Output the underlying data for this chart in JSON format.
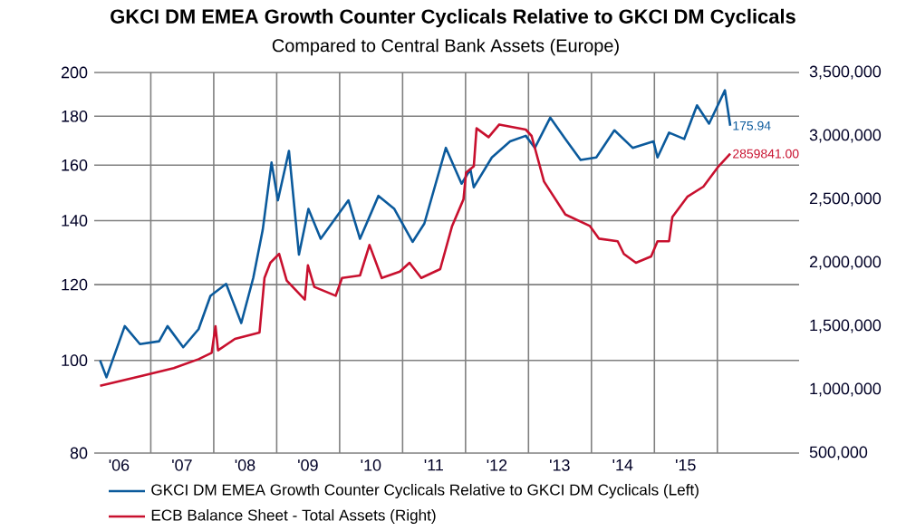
{
  "chart_data": {
    "type": "line",
    "title": "GKCI DM EMEA Growth Counter Cyclicals Relative to GKCI DM Cyclicals",
    "subtitle": "Compared to Central Bank Assets (Europe)",
    "xlim": [
      "2006-02-07",
      "2017-04-20"
    ],
    "xticks": [
      {
        "value": "2006-07-01",
        "label": "'06"
      },
      {
        "value": "2007-07-01",
        "label": "'07"
      },
      {
        "value": "2008-07-01",
        "label": "'08"
      },
      {
        "value": "2009-07-01",
        "label": "'09"
      },
      {
        "value": "2010-07-01",
        "label": "'10"
      },
      {
        "value": "2011-07-01",
        "label": "'11"
      },
      {
        "value": "2012-07-01",
        "label": "'12"
      },
      {
        "value": "2013-07-01",
        "label": "'13"
      },
      {
        "value": "2014-07-01",
        "label": "'14"
      },
      {
        "value": "2015-07-01",
        "label": "'15"
      },
      {
        "value": "2007-01-01",
        "label": null
      },
      {
        "value": "2008-01-01",
        "label": null
      },
      {
        "value": "2009-01-01",
        "label": null
      },
      {
        "value": "2010-01-01",
        "label": null
      },
      {
        "value": "2011-01-01",
        "label": null
      },
      {
        "value": "2012-01-01",
        "label": null
      },
      {
        "value": "2013-01-01",
        "label": null
      },
      {
        "value": "2014-01-01",
        "label": null
      },
      {
        "value": "2015-01-01",
        "label": null
      },
      {
        "value": "2016-01-01",
        "label": null
      }
    ],
    "ylim": [
      80,
      200
    ],
    "yticks": [
      80,
      100,
      120,
      140,
      160,
      180,
      200
    ],
    "log": "y",
    "y2lim": [
      500000,
      3500000
    ],
    "y2ticks": [
      {
        "value": 500000,
        "label": "500,000"
      },
      {
        "value": 1000000,
        "label": "1,000,000"
      },
      {
        "value": 1500000,
        "label": "1,500,000"
      },
      {
        "value": 2000000,
        "label": "2,000,000"
      },
      {
        "value": 2500000,
        "label": "2,500,000"
      },
      {
        "value": 3000000,
        "label": "3,000,000"
      },
      {
        "value": 3500000,
        "label": "3,500,000"
      }
    ],
    "grid": true,
    "legend": "bottom",
    "series": [
      {
        "name": "GKCI DM EMEA Growth Counter Cyclicals Relative to GKCI DM Cyclicals  (Left)",
        "color": "#0b5a9c",
        "axis": "y",
        "x": [
          "2006-03-13",
          "2006-04-19",
          "2006-08-03",
          "2006-10-30",
          "2007-02-18",
          "2007-04-08",
          "2007-07-08",
          "2007-10-05",
          "2007-12-13",
          "2008-03-13",
          "2008-06-09",
          "2008-08-18",
          "2008-10-12",
          "2008-12-02",
          "2009-01-08",
          "2009-03-13",
          "2009-05-10",
          "2009-07-04",
          "2009-09-13",
          "2010-02-21",
          "2010-04-29",
          "2010-08-14",
          "2010-11-14",
          "2011-02-28",
          "2011-05-07",
          "2011-09-09",
          "2011-12-09",
          "2012-01-29",
          "2012-02-18",
          "2012-06-02",
          "2012-09-16",
          "2012-12-16",
          "2013-02-07",
          "2013-05-07",
          "2013-08-03",
          "2013-10-30",
          "2014-01-29",
          "2014-05-14",
          "2014-08-28",
          "2014-12-27",
          "2015-01-19",
          "2015-03-27",
          "2015-06-23",
          "2015-09-05",
          "2015-11-14",
          "2016-02-14",
          "2016-03-16"
        ],
        "values": [
          100,
          96,
          108.6,
          104,
          104.7,
          108.6,
          103.2,
          107.8,
          116.8,
          120.2,
          109.4,
          122,
          137,
          161,
          147,
          165.6,
          129,
          144,
          134,
          147,
          134,
          148.6,
          144,
          133,
          139,
          166.8,
          153,
          158.4,
          151.7,
          163,
          169.4,
          171.7,
          166.8,
          179.4,
          170.4,
          162,
          163,
          174,
          166.8,
          169.4,
          163,
          173,
          170.4,
          184.8,
          176.8,
          191.6,
          175.94
        ],
        "value_labels": [
          null,
          null,
          null,
          null,
          null,
          null,
          null,
          null,
          null,
          null,
          null,
          null,
          null,
          null,
          null,
          null,
          null,
          null,
          null,
          null,
          null,
          null,
          null,
          null,
          null,
          null,
          null,
          null,
          null,
          null,
          null,
          null,
          null,
          null,
          null,
          null,
          null,
          null,
          null,
          null,
          null,
          null,
          null,
          null,
          null,
          null,
          "175.94"
        ]
      },
      {
        "name": "ECB Balance Sheet - Total Assets  (Right)",
        "color": "#c8102e",
        "axis": "y2",
        "x": [
          "2006-03-13",
          "2006-11-17",
          "2007-05-14",
          "2007-10-05",
          "2007-12-20",
          "2008-01-11",
          "2008-01-26",
          "2008-05-03",
          "2008-09-23",
          "2008-10-22",
          "2008-11-25",
          "2009-01-15",
          "2009-02-28",
          "2009-06-13",
          "2009-07-01",
          "2009-08-07",
          "2009-12-09",
          "2010-01-15",
          "2010-04-29",
          "2010-06-23",
          "2010-09-02",
          "2010-12-16",
          "2011-02-10",
          "2011-04-19",
          "2011-08-07",
          "2011-10-15",
          "2011-12-20",
          "2012-01-04",
          "2012-02-18",
          "2012-03-05",
          "2012-05-14",
          "2012-07-15",
          "2012-12-16",
          "2013-01-19",
          "2013-04-01",
          "2013-08-03",
          "2013-12-23",
          "2014-02-14",
          "2014-06-02",
          "2014-07-08",
          "2014-09-16",
          "2014-12-13",
          "2015-01-19",
          "2015-03-27",
          "2015-04-15",
          "2015-07-11",
          "2015-10-12",
          "2016-01-08",
          "2016-03-16"
        ],
        "values": [
          1030000,
          1110000,
          1170000,
          1240000,
          1290000,
          1500000,
          1310000,
          1400000,
          1450000,
          1880000,
          2000000,
          2070000,
          1860000,
          1710000,
          1980000,
          1810000,
          1740000,
          1880000,
          1900000,
          2140000,
          1880000,
          1930000,
          2000000,
          1880000,
          1950000,
          2290000,
          2500000,
          2710000,
          2760000,
          3060000,
          2990000,
          3090000,
          3050000,
          3000000,
          2640000,
          2380000,
          2290000,
          2190000,
          2170000,
          2070000,
          2000000,
          2050000,
          2170000,
          2170000,
          2360000,
          2520000,
          2600000,
          2760000,
          2859841
        ],
        "value_labels": [
          null,
          null,
          null,
          null,
          null,
          null,
          null,
          null,
          null,
          null,
          null,
          null,
          null,
          null,
          null,
          null,
          null,
          null,
          null,
          null,
          null,
          null,
          null,
          null,
          null,
          null,
          null,
          null,
          null,
          null,
          null,
          null,
          null,
          null,
          null,
          null,
          null,
          null,
          null,
          null,
          null,
          null,
          null,
          null,
          null,
          null,
          null,
          null,
          "2859841.00"
        ]
      }
    ]
  }
}
